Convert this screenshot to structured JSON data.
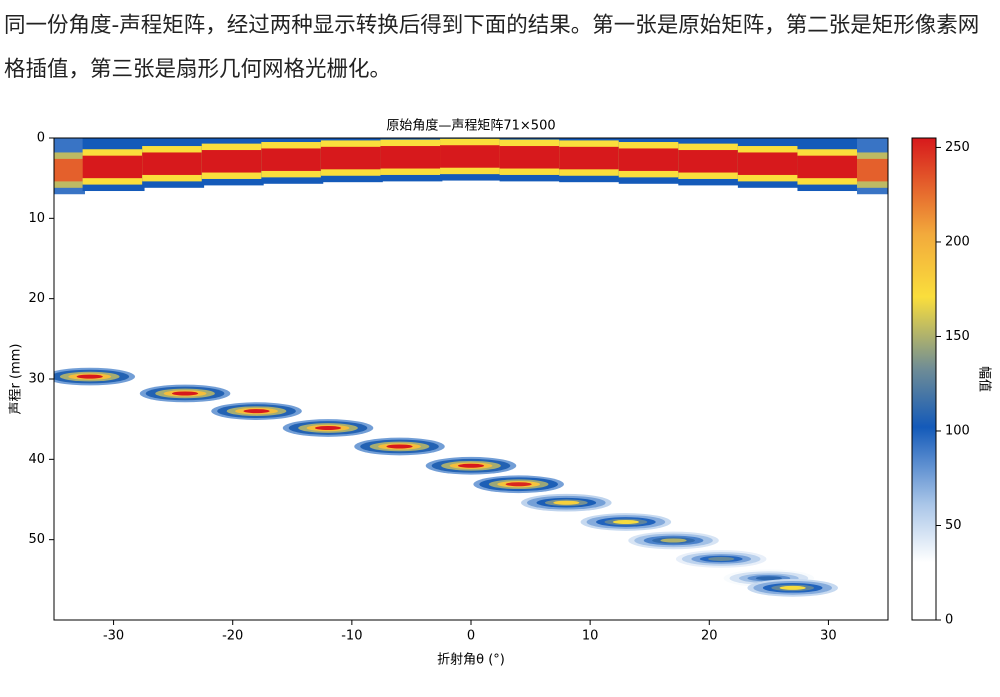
{
  "paragraph": "同一份角度-声程矩阵，经过两种显示转换后得到下面的结果。第一张是原始矩阵，第二张是矩形像素网格插值，第三张是扇形几何网格光栅化。",
  "chart_data": {
    "type": "heatmap",
    "title": "原始角度—声程矩阵71×500",
    "xlabel": "折射角θ (°)",
    "ylabel": "声程r (mm)",
    "xlim": [
      -35,
      35
    ],
    "xticks": [
      -30,
      -20,
      -10,
      0,
      10,
      20,
      30
    ],
    "ylim": [
      0,
      60
    ],
    "yticks": [
      0,
      10,
      20,
      30,
      40,
      50
    ],
    "colorbar_label": "幅值",
    "clim": [
      0,
      255
    ],
    "cticks": [
      0,
      50,
      100,
      150,
      200,
      250
    ],
    "surface": {
      "x": [
        -35,
        -30,
        -25,
        -20,
        -15,
        -10,
        -5,
        0,
        5,
        10,
        15,
        20,
        25,
        30,
        35
      ],
      "depth": [
        4.2,
        3.8,
        3.4,
        3.1,
        2.9,
        2.7,
        2.6,
        2.5,
        2.6,
        2.7,
        2.9,
        3.1,
        3.4,
        3.8,
        4.2
      ],
      "values": [
        230,
        255,
        255,
        255,
        255,
        255,
        255,
        255,
        255,
        255,
        255,
        255,
        255,
        255,
        230
      ]
    },
    "echoes": {
      "x": [
        -32,
        -24,
        -18,
        -12,
        -6,
        0,
        4,
        8,
        13,
        17,
        21,
        25,
        27
      ],
      "depth": [
        29.7,
        31.8,
        34,
        36.1,
        38.4,
        40.8,
        43.1,
        45.4,
        47.8,
        50.1,
        52.4,
        54.8,
        56
      ],
      "values": [
        255,
        255,
        255,
        255,
        255,
        255,
        250,
        180,
        170,
        150,
        130,
        110,
        170
      ]
    }
  }
}
